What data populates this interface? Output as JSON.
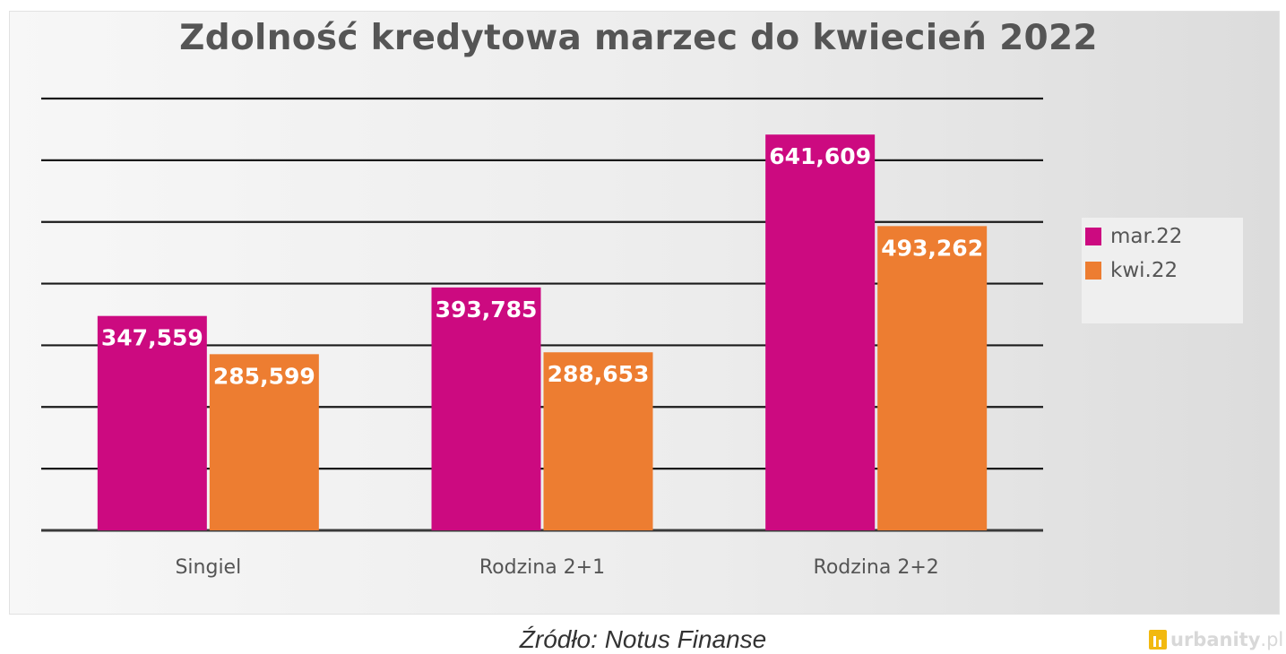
{
  "chart_data": {
    "type": "bar",
    "title": "Zdolność kredytowa marzec do kwiecień 2022",
    "categories": [
      "Singiel",
      "Rodzina 2+1",
      "Rodzina 2+2"
    ],
    "series": [
      {
        "name": "mar.22",
        "color": "#cc0a80",
        "values": [
          347559,
          393785,
          641609
        ],
        "labels": [
          "347,559",
          "393,785",
          "641,609"
        ]
      },
      {
        "name": "kwi.22",
        "color": "#ed7d31",
        "values": [
          285599,
          288653,
          493262
        ],
        "labels": [
          "285,599",
          "288,653",
          "493,262"
        ]
      }
    ],
    "ylim": [
      0,
      700000
    ],
    "ytick_step": 100000,
    "grid": true,
    "legend": "right",
    "xlabel": "",
    "ylabel": ""
  },
  "source": "Źródło: Notus Finanse",
  "watermark": {
    "brand": "urbanity",
    "domain": ".pl"
  }
}
